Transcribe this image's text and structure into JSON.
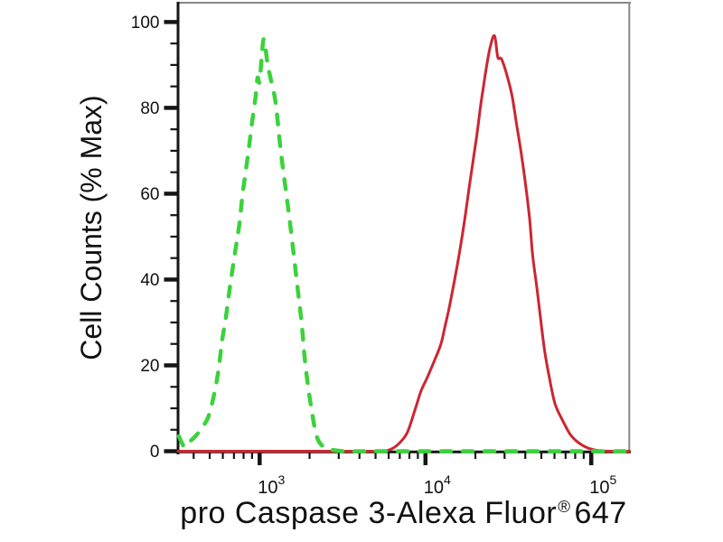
{
  "chart_data": {
    "type": "line",
    "title": "",
    "ylabel": "Cell Counts (% Max)",
    "xlabel": {
      "main": "pro Caspase 3-Alexa Fluor",
      "registered": "®",
      "suffix": "647"
    },
    "x_axis": {
      "scale": "log",
      "min": 320,
      "max": 171000,
      "tick_base": 10,
      "major_tick_exponents": [
        3,
        4,
        5
      ]
    },
    "y_axis": {
      "scale": "linear",
      "min": 0,
      "max": 104.5,
      "major_ticks": [
        0,
        20,
        40,
        60,
        80,
        100
      ],
      "minor_tick_step": 5
    },
    "grid": false,
    "legend": "none",
    "colors": {
      "axis": "#151515",
      "border": "#888888",
      "tick_text": "#111111"
    },
    "series": [
      {
        "name": "solid red histogram",
        "color": "#cc2630",
        "line_style": "solid",
        "line_width": 3,
        "points": [
          [
            322,
            0
          ],
          [
            700,
            0
          ],
          [
            1500,
            0
          ],
          [
            3000,
            0
          ],
          [
            4500,
            0
          ],
          [
            5600,
            0
          ],
          [
            6300,
            0.6
          ],
          [
            7000,
            2
          ],
          [
            7800,
            4.5
          ],
          [
            8700,
            10
          ],
          [
            9400,
            14
          ],
          [
            10200,
            17
          ],
          [
            11300,
            21
          ],
          [
            12400,
            25
          ],
          [
            13100,
            29
          ],
          [
            14000,
            34
          ],
          [
            15500,
            43
          ],
          [
            17100,
            53
          ],
          [
            18600,
            63
          ],
          [
            20300,
            73
          ],
          [
            21600,
            81
          ],
          [
            23000,
            88
          ],
          [
            24500,
            94
          ],
          [
            26100,
            96.8
          ],
          [
            27300,
            91.8
          ],
          [
            28700,
            91.4
          ],
          [
            30800,
            88
          ],
          [
            33200,
            83
          ],
          [
            35500,
            76
          ],
          [
            37600,
            70
          ],
          [
            39900,
            63
          ],
          [
            42500,
            54
          ],
          [
            44200,
            46
          ],
          [
            47000,
            38
          ],
          [
            49400,
            31
          ],
          [
            52500,
            23
          ],
          [
            56000,
            17
          ],
          [
            60500,
            11
          ],
          [
            67500,
            7
          ],
          [
            75000,
            3.8
          ],
          [
            85000,
            1.8
          ],
          [
            96000,
            0.7
          ],
          [
            112000,
            0.1
          ],
          [
            140000,
            0
          ],
          [
            170500,
            0
          ]
        ]
      },
      {
        "name": "dashed green histogram",
        "color": "#3cd23c",
        "line_style": "dashed",
        "line_width": 4.5,
        "points": [
          [
            326,
            3.5
          ],
          [
            352,
            1
          ],
          [
            378,
            2.2
          ],
          [
            410,
            3.5
          ],
          [
            450,
            5.5
          ],
          [
            490,
            8
          ],
          [
            530,
            13
          ],
          [
            565,
            19
          ],
          [
            595,
            26
          ],
          [
            625,
            31
          ],
          [
            655,
            37
          ],
          [
            690,
            43
          ],
          [
            722,
            48
          ],
          [
            755,
            53
          ],
          [
            790,
            60
          ],
          [
            830,
            66
          ],
          [
            870,
            72
          ],
          [
            910,
            78
          ],
          [
            948,
            83
          ],
          [
            972,
            87
          ],
          [
            998,
            86
          ],
          [
            1025,
            91
          ],
          [
            1060,
            96
          ],
          [
            1120,
            90
          ],
          [
            1185,
            85.5
          ],
          [
            1250,
            81
          ],
          [
            1350,
            69
          ],
          [
            1460,
            59
          ],
          [
            1560,
            50
          ],
          [
            1670,
            40
          ],
          [
            1790,
            30
          ],
          [
            1890,
            20
          ],
          [
            2050,
            10
          ],
          [
            2230,
            3
          ],
          [
            2500,
            0.8
          ],
          [
            2850,
            0.2
          ],
          [
            3300,
            0
          ],
          [
            4500,
            0
          ],
          [
            7000,
            0
          ],
          [
            12000,
            0
          ],
          [
            22000,
            0
          ],
          [
            45000,
            0
          ],
          [
            90000,
            0
          ],
          [
            170500,
            0
          ]
        ]
      }
    ]
  }
}
